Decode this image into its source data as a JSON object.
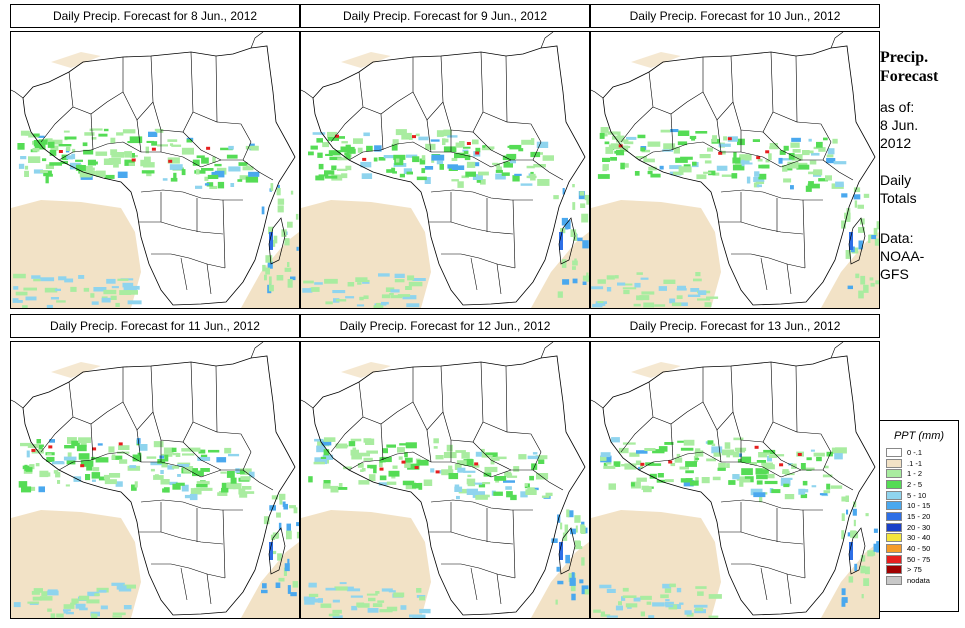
{
  "panels": [
    {
      "title": "Daily Precip. Forecast for  8 Jun., 2012"
    },
    {
      "title": "Daily Precip. Forecast for  9 Jun., 2012"
    },
    {
      "title": "Daily Precip. Forecast for  10 Jun., 2012"
    },
    {
      "title": "Daily Precip. Forecast for  11 Jun., 2012"
    },
    {
      "title": "Daily Precip. Forecast for  12 Jun., 2012"
    },
    {
      "title": "Daily Precip. Forecast for  13 Jun., 2012"
    }
  ],
  "sidebar": {
    "title_line1": "Precip.",
    "title_line2": "Forecast",
    "asof_line1": "as of:",
    "asof_line2": "8 Jun.",
    "asof_line3": "2012",
    "daily_line1": "Daily",
    "daily_line2": "Totals",
    "data_line1": "Data:",
    "data_line2": "NOAA-",
    "data_line3": "GFS"
  },
  "legend": {
    "title": "PPT (mm)",
    "items": [
      {
        "label": "0 -.1",
        "color": "#ffffff"
      },
      {
        "label": ".1 -1",
        "color": "#f2e2c6"
      },
      {
        "label": "1 - 2",
        "color": "#a9eca0"
      },
      {
        "label": "2 - 5",
        "color": "#55dc55"
      },
      {
        "label": "5 - 10",
        "color": "#8fd4ee"
      },
      {
        "label": "10 - 15",
        "color": "#4aa8ee"
      },
      {
        "label": "15 - 20",
        "color": "#2e6fe6"
      },
      {
        "label": "20 - 30",
        "color": "#1a40c8"
      },
      {
        "label": "30 - 40",
        "color": "#f5e63c"
      },
      {
        "label": "40 - 50",
        "color": "#f59c28"
      },
      {
        "label": "50 - 75",
        "color": "#e61e1e"
      },
      {
        "label": "> 75",
        "color": "#a00000"
      },
      {
        "label": "nodata",
        "color": "#c8c8c8"
      }
    ]
  }
}
